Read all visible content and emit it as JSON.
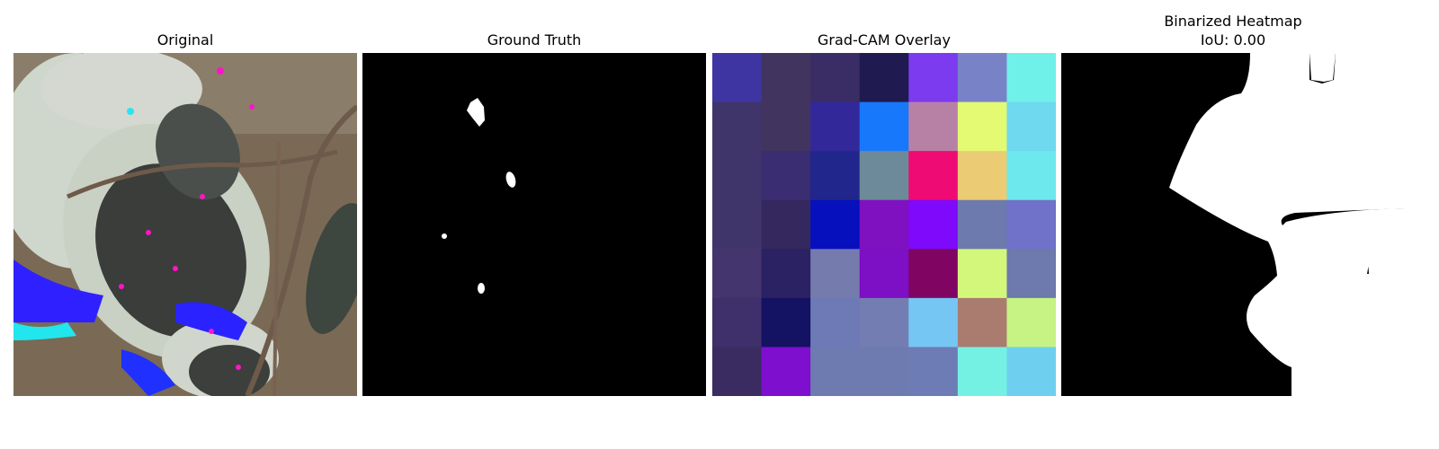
{
  "panels": [
    {
      "title": "Original"
    },
    {
      "title": "Ground Truth"
    },
    {
      "title": "Grad-CAM Overlay"
    },
    {
      "title": "Binarized Heatmap",
      "subtitle": "IoU: 0.00"
    }
  ],
  "gradcam": {
    "grid": [
      [
        "#3f35a2",
        "#41355f",
        "#3a2d65",
        "#1f1a4f",
        "#7c3bee",
        "#7883c7",
        "#6ff0e8"
      ],
      [
        "#40356b",
        "#41355f",
        "#32289a",
        "#1778fb",
        "#b781a6",
        "#e3fa72",
        "#6fd9ef"
      ],
      [
        "#40356b",
        "#3a2d72",
        "#21268c",
        "#6c8a99",
        "#ef0b74",
        "#ebcc74",
        "#6de8ec"
      ],
      [
        "#40356b",
        "#34285e",
        "#0610bd",
        "#7f11c0",
        "#7f09fb",
        "#6d7aae",
        "#6f72c8"
      ],
      [
        "#45356e",
        "#2a2262",
        "#767bad",
        "#7d0fc4",
        "#800562",
        "#d3f77b",
        "#6e79ad"
      ],
      [
        "#3f2f6a",
        "#141263",
        "#6d7ab6",
        "#737db2",
        "#76c6f4",
        "#a97c6f",
        "#c6f384"
      ],
      [
        "#3a2c60",
        "#7e0fcf",
        "#6e7bb0",
        "#6e7bb0",
        "#6d7cb4",
        "#75f1e4",
        "#6fcfef"
      ]
    ]
  },
  "colors": {
    "background": "#ffffff",
    "mask_background": "#000000",
    "mask_foreground": "#ffffff"
  }
}
